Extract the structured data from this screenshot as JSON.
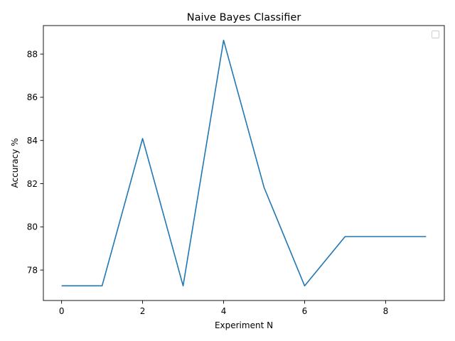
{
  "chart_data": {
    "type": "line",
    "title": "Naive Bayes Classifier",
    "xlabel": "Experiment N",
    "ylabel": "Accuracy %",
    "x": [
      0,
      1,
      2,
      3,
      4,
      5,
      6,
      7,
      8,
      9
    ],
    "series": [
      {
        "values": [
          77.27,
          77.27,
          84.09,
          77.27,
          88.64,
          81.82,
          77.27,
          79.55,
          79.55,
          79.55
        ],
        "color": "#1f77b4"
      }
    ],
    "xlim": [
      -0.45,
      9.45
    ],
    "ylim": [
      76.59,
      89.32
    ],
    "xticks": [
      0,
      2,
      4,
      6,
      8
    ],
    "yticks": [
      78,
      80,
      82,
      84,
      86,
      88
    ],
    "grid": false,
    "legend": {
      "placement": "top-right",
      "entries": []
    }
  }
}
